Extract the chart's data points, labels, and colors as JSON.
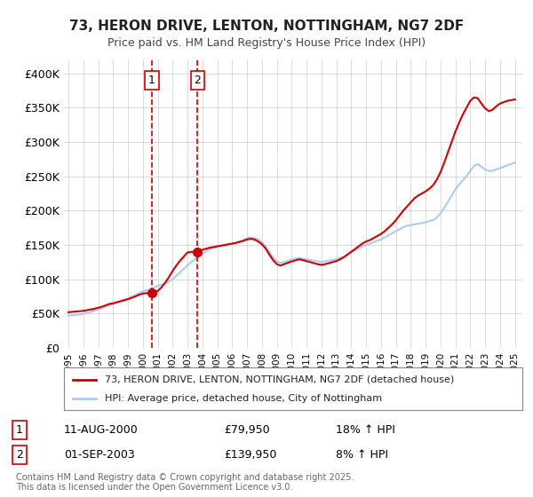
{
  "title": "73, HERON DRIVE, LENTON, NOTTINGHAM, NG7 2DF",
  "subtitle": "Price paid vs. HM Land Registry's House Price Index (HPI)",
  "ylabel_color": "#333333",
  "background_color": "#ffffff",
  "plot_bg_color": "#ffffff",
  "grid_color": "#cccccc",
  "hpi_line_color": "#aaccee",
  "price_line_color": "#cc0000",
  "purchase_marker_color": "#cc0000",
  "ylim": [
    0,
    420000
  ],
  "yticks": [
    0,
    50000,
    100000,
    150000,
    200000,
    250000,
    300000,
    350000,
    400000
  ],
  "ytick_labels": [
    "£0",
    "£50K",
    "£100K",
    "£150K",
    "£200K",
    "£250K",
    "£300K",
    "£350K",
    "£400K"
  ],
  "legend_price_label": "73, HERON DRIVE, LENTON, NOTTINGHAM, NG7 2DF (detached house)",
  "legend_hpi_label": "HPI: Average price, detached house, City of Nottingham",
  "footer_text": "Contains HM Land Registry data © Crown copyright and database right 2025.\nThis data is licensed under the Open Government Licence v3.0.",
  "purchase1_date_num": 2000.6,
  "purchase1_price": 79950,
  "purchase1_label": "1",
  "purchase1_date_str": "11-AUG-2000",
  "purchase1_pct": "18% ↑ HPI",
  "purchase2_date_num": 2003.67,
  "purchase2_price": 139950,
  "purchase2_label": "2",
  "purchase2_date_str": "01-SEP-2003",
  "purchase2_pct": "8% ↑ HPI",
  "hpi_x": [
    1995.0,
    1995.25,
    1995.5,
    1995.75,
    1996.0,
    1996.25,
    1996.5,
    1996.75,
    1997.0,
    1997.25,
    1997.5,
    1997.75,
    1998.0,
    1998.25,
    1998.5,
    1998.75,
    1999.0,
    1999.25,
    1999.5,
    1999.75,
    2000.0,
    2000.25,
    2000.5,
    2000.75,
    2001.0,
    2001.25,
    2001.5,
    2001.75,
    2002.0,
    2002.25,
    2002.5,
    2002.75,
    2003.0,
    2003.25,
    2003.5,
    2003.75,
    2004.0,
    2004.25,
    2004.5,
    2004.75,
    2005.0,
    2005.25,
    2005.5,
    2005.75,
    2006.0,
    2006.25,
    2006.5,
    2006.75,
    2007.0,
    2007.25,
    2007.5,
    2007.75,
    2008.0,
    2008.25,
    2008.5,
    2008.75,
    2009.0,
    2009.25,
    2009.5,
    2009.75,
    2010.0,
    2010.25,
    2010.5,
    2010.75,
    2011.0,
    2011.25,
    2011.5,
    2011.75,
    2012.0,
    2012.25,
    2012.5,
    2012.75,
    2013.0,
    2013.25,
    2013.5,
    2013.75,
    2014.0,
    2014.25,
    2014.5,
    2014.75,
    2015.0,
    2015.25,
    2015.5,
    2015.75,
    2016.0,
    2016.25,
    2016.5,
    2016.75,
    2017.0,
    2017.25,
    2017.5,
    2017.75,
    2018.0,
    2018.25,
    2018.5,
    2018.75,
    2019.0,
    2019.25,
    2019.5,
    2019.75,
    2020.0,
    2020.25,
    2020.5,
    2020.75,
    2021.0,
    2021.25,
    2021.5,
    2021.75,
    2022.0,
    2022.25,
    2022.5,
    2022.75,
    2023.0,
    2023.25,
    2023.5,
    2023.75,
    2024.0,
    2024.25,
    2024.5,
    2024.75,
    2025.0
  ],
  "hpi_y": [
    47000,
    47500,
    48000,
    48500,
    49500,
    51000,
    52500,
    54000,
    56000,
    58000,
    60000,
    62000,
    64000,
    66000,
    68000,
    70000,
    72000,
    74500,
    77000,
    80000,
    82500,
    84000,
    86000,
    88000,
    90000,
    92000,
    94000,
    96500,
    100000,
    105000,
    110000,
    115000,
    120000,
    125000,
    129000,
    133000,
    137000,
    141000,
    144000,
    146000,
    147000,
    148000,
    149000,
    150000,
    151500,
    153000,
    155000,
    157000,
    160000,
    161000,
    160000,
    158000,
    154000,
    148000,
    140000,
    132000,
    126000,
    124000,
    125000,
    127000,
    129000,
    130000,
    131000,
    130000,
    129000,
    128000,
    127000,
    126000,
    125000,
    126000,
    127000,
    128000,
    129000,
    131000,
    133000,
    136000,
    139000,
    142000,
    145000,
    148000,
    150000,
    152000,
    154000,
    156000,
    158000,
    161000,
    164000,
    167000,
    170000,
    173000,
    176000,
    178000,
    179000,
    180000,
    181000,
    182000,
    183000,
    185000,
    186000,
    190000,
    196000,
    204000,
    213000,
    222000,
    231000,
    238000,
    244000,
    250000,
    258000,
    265000,
    268000,
    264000,
    260000,
    258000,
    258000,
    260000,
    262000,
    264000,
    266000,
    268000,
    270000
  ],
  "price_x": [
    1995.0,
    1995.25,
    1995.5,
    1995.75,
    1996.0,
    1996.25,
    1996.5,
    1996.75,
    1997.0,
    1997.25,
    1997.5,
    1997.75,
    1998.0,
    1998.25,
    1998.5,
    1998.75,
    1999.0,
    1999.25,
    1999.5,
    1999.75,
    2000.0,
    2000.25,
    2000.5,
    2000.75,
    2001.0,
    2001.25,
    2001.5,
    2001.75,
    2002.0,
    2002.25,
    2002.5,
    2002.75,
    2003.0,
    2003.25,
    2003.5,
    2003.75,
    2004.0,
    2004.25,
    2004.5,
    2004.75,
    2005.0,
    2005.25,
    2005.5,
    2005.75,
    2006.0,
    2006.25,
    2006.5,
    2006.75,
    2007.0,
    2007.25,
    2007.5,
    2007.75,
    2008.0,
    2008.25,
    2008.5,
    2008.75,
    2009.0,
    2009.25,
    2009.5,
    2009.75,
    2010.0,
    2010.25,
    2010.5,
    2010.75,
    2011.0,
    2011.25,
    2011.5,
    2011.75,
    2012.0,
    2012.25,
    2012.5,
    2012.75,
    2013.0,
    2013.25,
    2013.5,
    2013.75,
    2014.0,
    2014.25,
    2014.5,
    2014.75,
    2015.0,
    2015.25,
    2015.5,
    2015.75,
    2016.0,
    2016.25,
    2016.5,
    2016.75,
    2017.0,
    2017.25,
    2017.5,
    2017.75,
    2018.0,
    2018.25,
    2018.5,
    2018.75,
    2019.0,
    2019.25,
    2019.5,
    2019.75,
    2020.0,
    2020.25,
    2020.5,
    2020.75,
    2021.0,
    2021.25,
    2021.5,
    2021.75,
    2022.0,
    2022.25,
    2022.5,
    2022.75,
    2023.0,
    2023.25,
    2023.5,
    2023.75,
    2024.0,
    2024.25,
    2024.5,
    2024.75,
    2025.0
  ],
  "price_y": [
    52000,
    52500,
    53000,
    53500,
    54000,
    55000,
    56000,
    57000,
    58500,
    60000,
    62000,
    64000,
    65000,
    66500,
    68000,
    69500,
    71000,
    73000,
    75000,
    77500,
    79000,
    79950,
    80000,
    80500,
    83000,
    88000,
    95000,
    103000,
    112000,
    120000,
    127000,
    133000,
    139000,
    139950,
    140000,
    141500,
    143000,
    144500,
    146000,
    147000,
    148000,
    149000,
    150000,
    151000,
    152000,
    153000,
    154500,
    156000,
    158000,
    159000,
    158000,
    155000,
    151000,
    145000,
    136000,
    128000,
    122000,
    120000,
    122000,
    124000,
    126000,
    127500,
    129000,
    128000,
    126500,
    125000,
    123500,
    122000,
    121000,
    122000,
    123500,
    125000,
    126500,
    129000,
    132000,
    136000,
    140000,
    144000,
    148000,
    152000,
    155000,
    157000,
    160000,
    163000,
    166000,
    170000,
    175000,
    180000,
    186000,
    193000,
    200000,
    206000,
    212000,
    218000,
    222000,
    225000,
    228000,
    232000,
    237000,
    245000,
    256000,
    270000,
    285000,
    300000,
    315000,
    328000,
    340000,
    350000,
    360000,
    365000,
    364000,
    356000,
    349000,
    345000,
    347000,
    352000,
    356000,
    358000,
    360000,
    361000,
    362000
  ]
}
